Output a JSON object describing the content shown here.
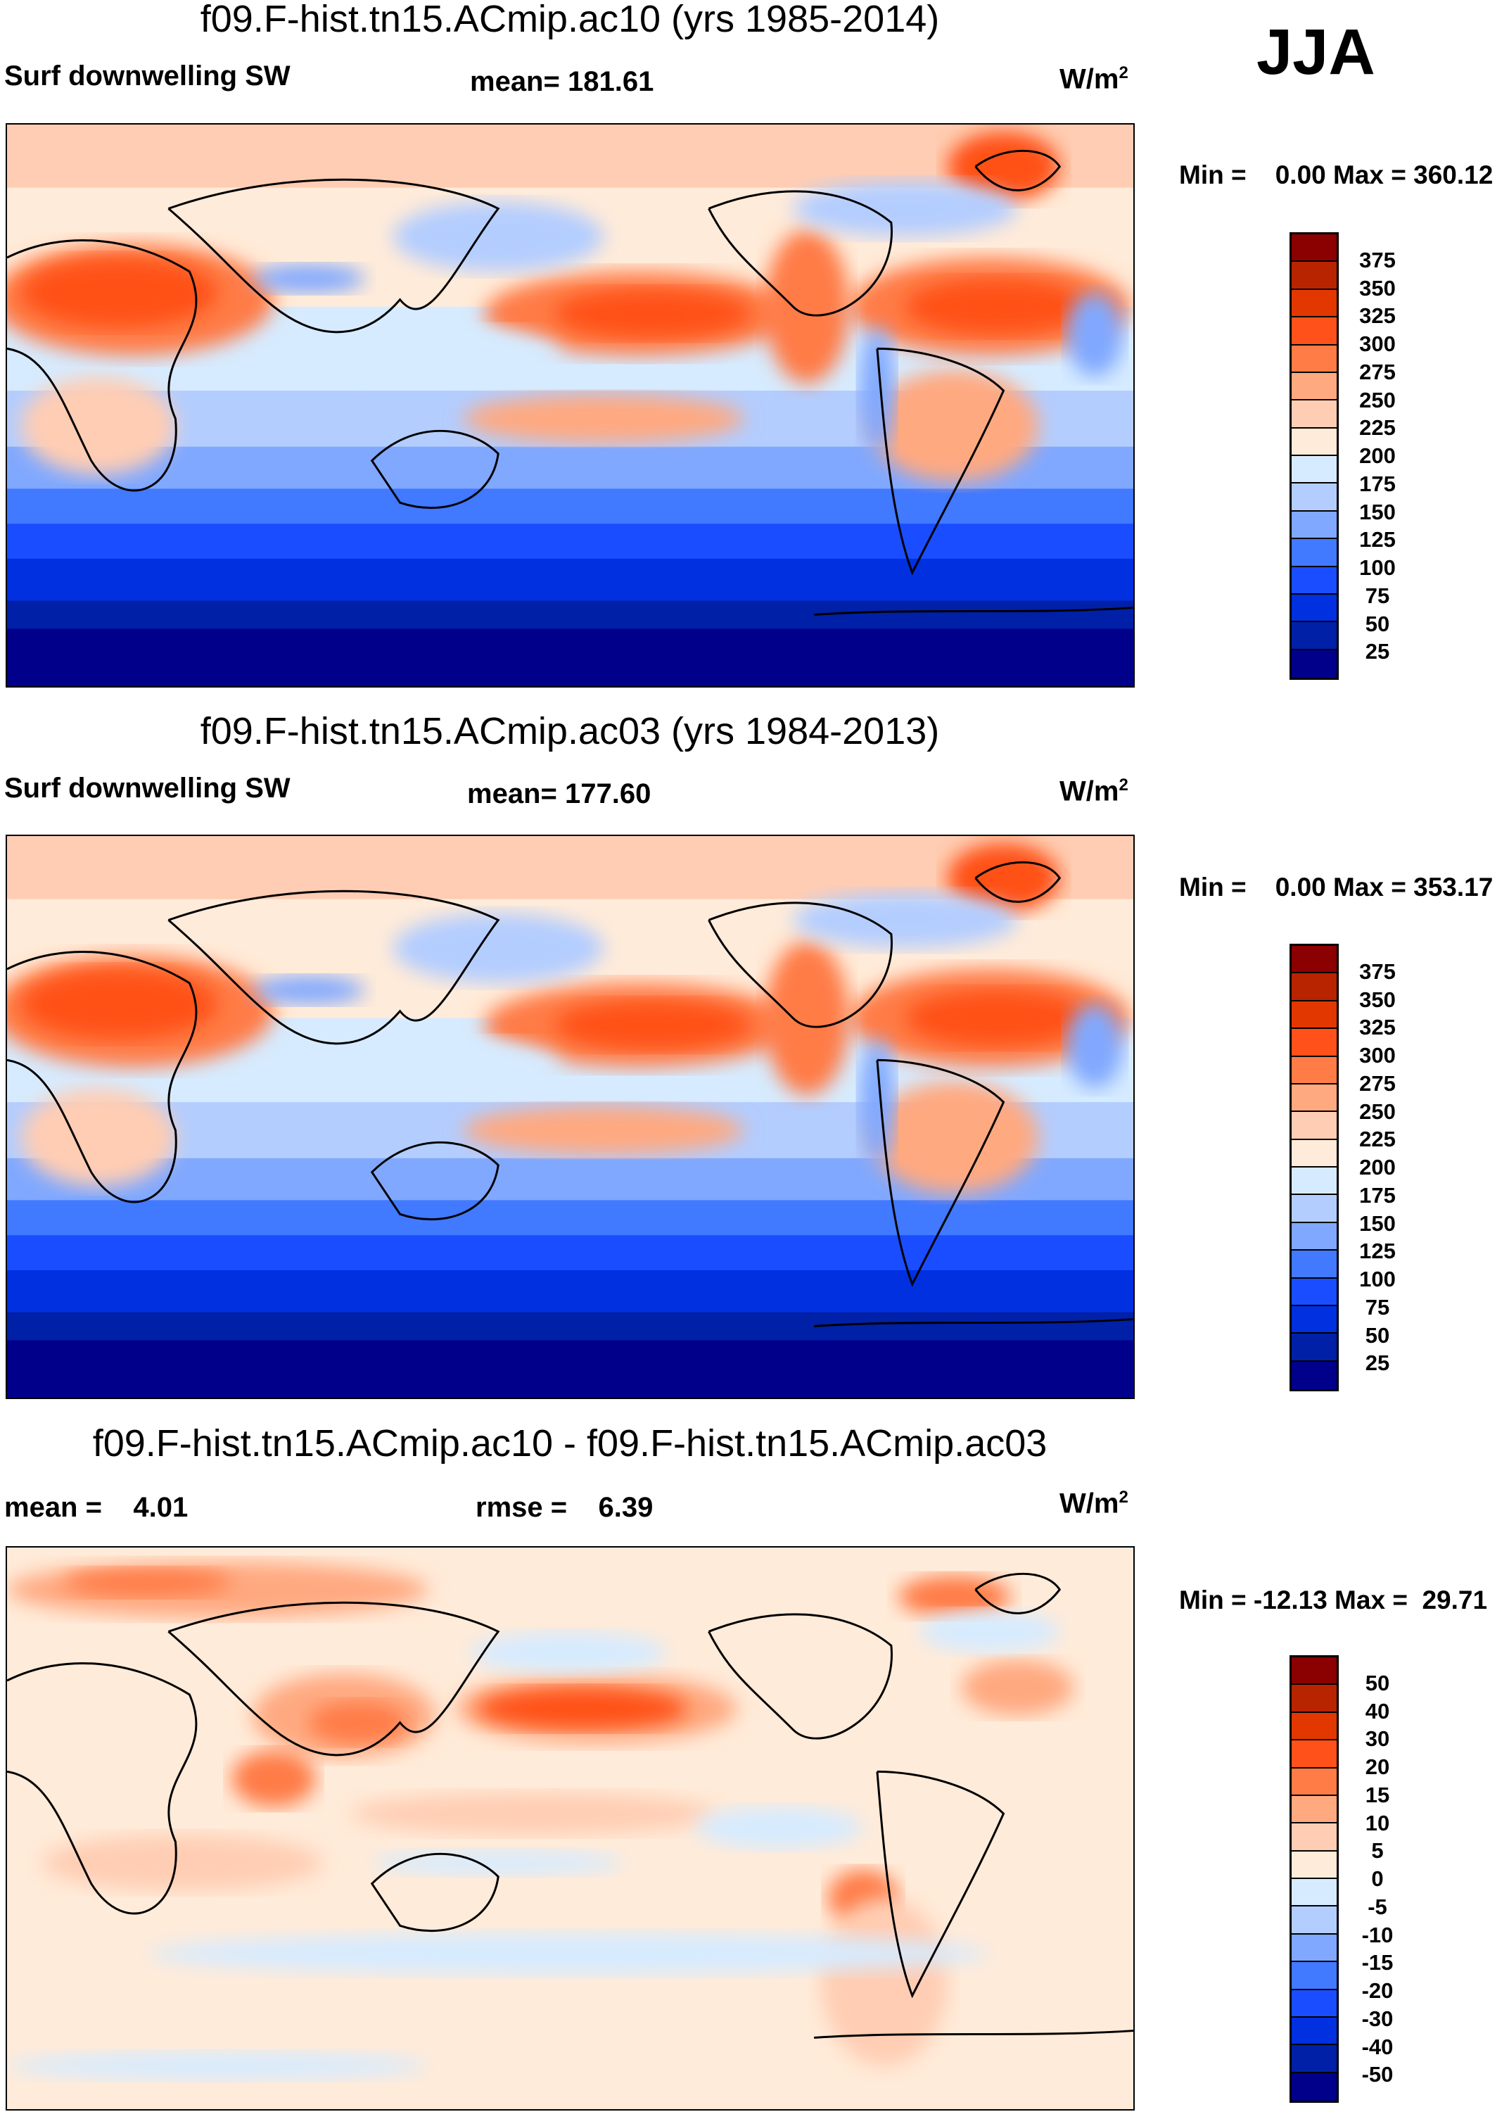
{
  "season": "JJA",
  "chart_data": [
    {
      "type": "heatmap",
      "title": "f09.F-hist.tn15.ACmip.ac10 (yrs 1985-2014)",
      "left_label": "Surf downwelling SW",
      "center_label": "mean= 181.61",
      "units": "W/m",
      "units_sup": "2",
      "minmax": "Min =    0.00 Max = 360.12",
      "min": 0.0,
      "max": 360.12,
      "mean": 181.61,
      "levels": [
        "375",
        "350",
        "325",
        "300",
        "275",
        "250",
        "225",
        "200",
        "175",
        "150",
        "125",
        "100",
        "75",
        "50",
        "25"
      ],
      "colors": [
        "#8b0000",
        "#b82400",
        "#e33700",
        "#ff5119",
        "#ff7c46",
        "#ffa980",
        "#ffcdb3",
        "#ffebd9",
        "#d6ebff",
        "#b3cdff",
        "#80a8ff",
        "#4179ff",
        "#1a4dff",
        "#0030e0",
        "#0020a8",
        "#00008b"
      ]
    },
    {
      "type": "heatmap",
      "title": "f09.F-hist.tn15.ACmip.ac03 (yrs 1984-2013)",
      "left_label": "Surf downwelling SW",
      "center_label": "mean= 177.60",
      "units": "W/m",
      "units_sup": "2",
      "minmax": "Min =    0.00 Max = 353.17",
      "min": 0.0,
      "max": 353.17,
      "mean": 177.6,
      "levels": [
        "375",
        "350",
        "325",
        "300",
        "275",
        "250",
        "225",
        "200",
        "175",
        "150",
        "125",
        "100",
        "75",
        "50",
        "25"
      ],
      "colors": [
        "#8b0000",
        "#b82400",
        "#e33700",
        "#ff5119",
        "#ff7c46",
        "#ffa980",
        "#ffcdb3",
        "#ffebd9",
        "#d6ebff",
        "#b3cdff",
        "#80a8ff",
        "#4179ff",
        "#1a4dff",
        "#0030e0",
        "#0020a8",
        "#00008b"
      ]
    },
    {
      "type": "heatmap",
      "title": "f09.F-hist.tn15.ACmip.ac10 - f09.F-hist.tn15.ACmip.ac03",
      "left_label": "mean =    4.01",
      "center_label": "rmse =    6.39",
      "units": "W/m",
      "units_sup": "2",
      "minmax": "Min = -12.13 Max =  29.71",
      "min": -12.13,
      "max": 29.71,
      "mean": 4.01,
      "rmse": 6.39,
      "levels": [
        "50",
        "40",
        "30",
        "20",
        "15",
        "10",
        "5",
        "0",
        "-5",
        "-10",
        "-15",
        "-20",
        "-30",
        "-40",
        "-50"
      ],
      "colors": [
        "#8b0000",
        "#b82400",
        "#e33700",
        "#ff5119",
        "#ff7c46",
        "#ffa980",
        "#ffcdb3",
        "#ffebd9",
        "#d6ebff",
        "#b3cdff",
        "#80a8ff",
        "#4179ff",
        "#1a4dff",
        "#0030e0",
        "#0020a8",
        "#00008b"
      ]
    }
  ]
}
